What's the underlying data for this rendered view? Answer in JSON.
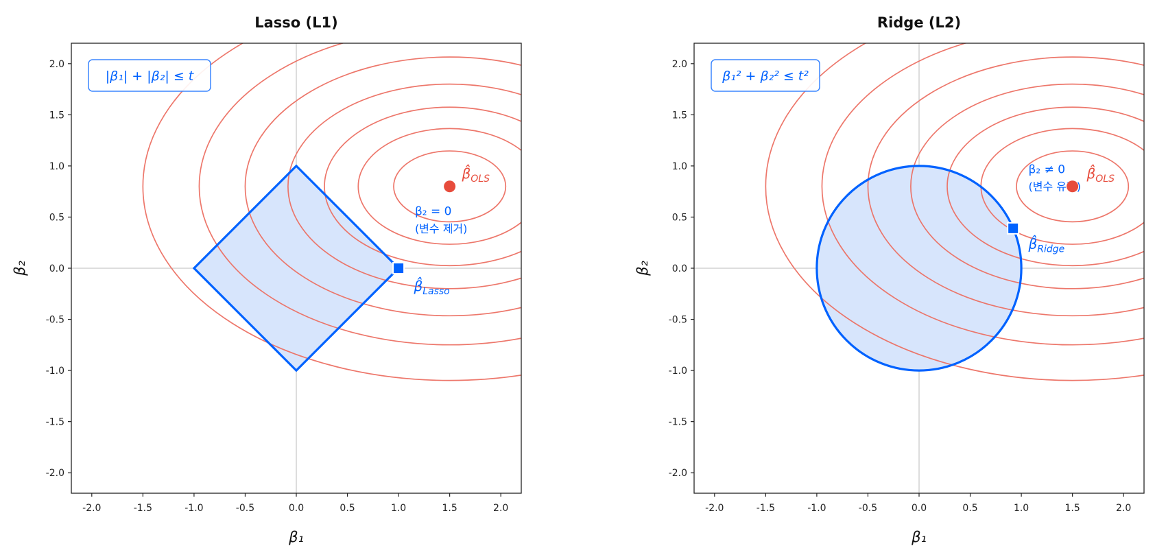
{
  "chart_data": [
    {
      "type": "contour",
      "title": "Lasso (L1)",
      "xlabel": "β₁",
      "ylabel": "β₂",
      "xlim": [
        -2.2,
        2.2
      ],
      "ylim": [
        -2.2,
        2.2
      ],
      "xticks": [
        "-2.0",
        "-1.5",
        "-1.0",
        "-0.5",
        "0.0",
        "0.5",
        "1.0",
        "1.5",
        "2.0"
      ],
      "yticks": [
        "2.0",
        "1.5",
        "1.0",
        "0.5",
        "0.0",
        "-0.5",
        "-1.0",
        "-1.5",
        "-2.0"
      ],
      "tick_values": [
        -2.0,
        -1.5,
        -1.0,
        -0.5,
        0.0,
        0.5,
        1.0,
        1.5,
        2.0
      ],
      "contours": {
        "center": [
          1.5,
          0.8
        ],
        "y_weight": 2.5,
        "levels": [
          0.3,
          0.8,
          1.5,
          2.5,
          4.0,
          6.0,
          9.0
        ],
        "color": "#ec7063"
      },
      "constraint": {
        "shape": "diamond",
        "t": 1.0,
        "formula": "|β₁| + |β₂| ≤ t",
        "color": "#0062ff",
        "fill": "#d7e5fc"
      },
      "ols_point": {
        "x": 1.5,
        "y": 0.8,
        "label_base": "β̂",
        "label_sub": "OLS",
        "color": "#e74c3c"
      },
      "estimate_point": {
        "x": 1.0,
        "y": 0.0,
        "label_base": "β̂",
        "label_sub": "Lasso"
      },
      "annotation": {
        "line1": "β₂ = 0",
        "line2": "(변수 제거)"
      }
    },
    {
      "type": "contour",
      "title": "Ridge (L2)",
      "xlabel": "β₁",
      "ylabel": "β₂",
      "xlim": [
        -2.2,
        2.2
      ],
      "ylim": [
        -2.2,
        2.2
      ],
      "xticks": [
        "-2.0",
        "-1.5",
        "-1.0",
        "-0.5",
        "0.0",
        "0.5",
        "1.0",
        "1.5",
        "2.0"
      ],
      "yticks": [
        "2.0",
        "1.5",
        "1.0",
        "0.5",
        "0.0",
        "-0.5",
        "-1.0",
        "-1.5",
        "-2.0"
      ],
      "tick_values": [
        -2.0,
        -1.5,
        -1.0,
        -0.5,
        0.0,
        0.5,
        1.0,
        1.5,
        2.0
      ],
      "contours": {
        "center": [
          1.5,
          0.8
        ],
        "y_weight": 2.5,
        "levels": [
          0.3,
          0.8,
          1.5,
          2.5,
          4.0,
          6.0,
          9.0
        ],
        "color": "#ec7063"
      },
      "constraint": {
        "shape": "circle",
        "t": 1.0,
        "formula": "β₁² + β₂² ≤ t²",
        "color": "#0062ff",
        "fill": "#d7e5fc"
      },
      "ols_point": {
        "x": 1.5,
        "y": 0.8,
        "label_base": "β̂",
        "label_sub": "OLS",
        "color": "#e74c3c"
      },
      "estimate_point": {
        "x": 0.92,
        "y": 0.39,
        "label_base": "β̂",
        "label_sub": "Ridge"
      },
      "annotation": {
        "line1": "β₂ ≠ 0",
        "line2": "(변수 유지)"
      }
    }
  ]
}
